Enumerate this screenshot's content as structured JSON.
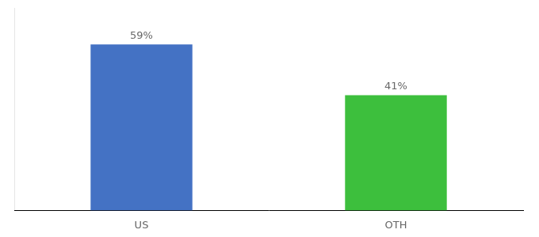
{
  "chart_data": {
    "type": "bar",
    "categories": [
      "US",
      "OTH"
    ],
    "values": [
      59,
      41
    ],
    "value_labels": [
      "59%",
      "41%"
    ],
    "colors": [
      "#4472C4",
      "#3DBF3D"
    ],
    "ylim": [
      0,
      72
    ],
    "data_labels": true,
    "tick_labels": "x",
    "grid": false
  }
}
